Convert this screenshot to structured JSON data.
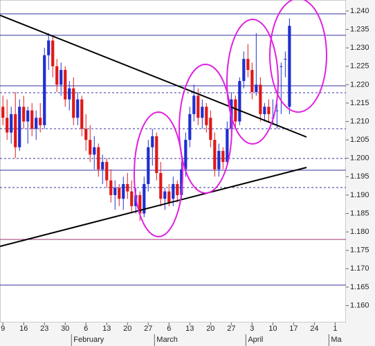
{
  "chart_data": {
    "type": "candlestick",
    "open": [
      1.214,
      1.211,
      1.207,
      1.212,
      1.203,
      1.214,
      1.21,
      1.213,
      1.208,
      1.211,
      1.209,
      1.228,
      1.232,
      1.225,
      1.22,
      1.224,
      1.216,
      1.219,
      1.211,
      1.216,
      1.208,
      1.205,
      1.201,
      1.203,
      1.197,
      1.199,
      1.194,
      1.19,
      1.192,
      1.189,
      1.193,
      1.191,
      1.187,
      1.19,
      1.185,
      1.193,
      1.203,
      1.206,
      1.196,
      1.189,
      1.191,
      1.189,
      1.193,
      1.19,
      1.197,
      1.205,
      1.212,
      1.217,
      1.211,
      1.214,
      1.211,
      1.205,
      1.197,
      1.202,
      1.199,
      1.208,
      1.216,
      1.21,
      1.221,
      1.227,
      1.224,
      1.218,
      1.22,
      1.212,
      1.214,
      1.211,
      1.213,
      1.225,
      1.227,
      1.214
    ],
    "high": [
      1.217,
      1.216,
      1.214,
      1.218,
      1.216,
      1.217,
      1.214,
      1.215,
      1.213,
      1.215,
      1.23,
      1.234,
      1.233,
      1.227,
      1.226,
      1.225,
      1.221,
      1.222,
      1.218,
      1.217,
      1.212,
      1.209,
      1.206,
      1.204,
      1.201,
      1.2,
      1.197,
      1.194,
      1.193,
      1.195,
      1.196,
      1.194,
      1.192,
      1.191,
      1.195,
      1.205,
      1.208,
      1.207,
      1.199,
      1.192,
      1.193,
      1.195,
      1.194,
      1.199,
      1.207,
      1.214,
      1.22,
      1.219,
      1.216,
      1.215,
      1.213,
      1.207,
      1.204,
      1.203,
      1.21,
      1.218,
      1.217,
      1.222,
      1.229,
      1.231,
      1.226,
      1.234,
      1.222,
      1.215,
      1.216,
      1.216,
      1.215,
      1.226,
      1.229,
      1.238
    ],
    "low": [
      1.209,
      1.205,
      1.204,
      1.2,
      1.202,
      1.208,
      1.204,
      1.206,
      1.205,
      1.207,
      1.208,
      1.224,
      1.222,
      1.218,
      1.217,
      1.214,
      1.213,
      1.209,
      1.209,
      1.206,
      1.202,
      1.199,
      1.197,
      1.195,
      1.193,
      1.192,
      1.188,
      1.186,
      1.187,
      1.186,
      1.189,
      1.185,
      1.185,
      1.183,
      1.184,
      1.191,
      1.198,
      1.194,
      1.187,
      1.186,
      1.187,
      1.187,
      1.188,
      1.189,
      1.195,
      1.203,
      1.21,
      1.209,
      1.208,
      1.207,
      1.203,
      1.195,
      1.195,
      1.197,
      1.198,
      1.206,
      1.208,
      1.209,
      1.219,
      1.222,
      1.216,
      1.217,
      1.21,
      1.21,
      1.21,
      1.209,
      1.208,
      1.212,
      1.222,
      1.212
    ],
    "close": [
      1.211,
      1.207,
      1.212,
      1.203,
      1.214,
      1.21,
      1.213,
      1.208,
      1.211,
      1.209,
      1.228,
      1.232,
      1.225,
      1.22,
      1.224,
      1.216,
      1.219,
      1.211,
      1.216,
      1.208,
      1.205,
      1.201,
      1.203,
      1.197,
      1.199,
      1.194,
      1.19,
      1.192,
      1.189,
      1.193,
      1.191,
      1.187,
      1.19,
      1.185,
      1.193,
      1.203,
      1.206,
      1.196,
      1.189,
      1.191,
      1.188,
      1.193,
      1.19,
      1.197,
      1.205,
      1.212,
      1.217,
      1.211,
      1.214,
      1.209,
      1.205,
      1.197,
      1.202,
      1.199,
      1.208,
      1.216,
      1.21,
      1.221,
      1.227,
      1.224,
      1.218,
      1.22,
      1.212,
      1.214,
      1.212,
      1.211,
      1.213,
      1.225,
      1.227,
      1.236
    ],
    "up_color": "#1f2fd0",
    "down_color": "#e01818",
    "ylim": [
      1.1554,
      1.243
    ],
    "yticks": [
      {
        "value": 1.24,
        "label": "1.240"
      },
      1.235,
      {
        "value": 1.23,
        "label": "1.230"
      },
      1.225,
      {
        "value": 1.22,
        "label": "1.220"
      },
      1.215,
      {
        "value": 1.21,
        "label": "1.210"
      },
      1.205,
      {
        "value": 1.2,
        "label": "1.200"
      },
      1.195,
      {
        "value": 1.19,
        "label": "1.190"
      },
      1.185,
      {
        "value": 1.18,
        "label": "1.180"
      },
      1.175,
      {
        "value": 1.17,
        "label": "1.170"
      },
      1.165,
      {
        "value": 1.16,
        "label": "1.160"
      }
    ],
    "xlim": [
      -0.7,
      82.6
    ],
    "xticks": [
      {
        "value": 0,
        "label": "9"
      },
      {
        "value": 5,
        "label": "16"
      },
      {
        "value": 10,
        "label": "23"
      },
      {
        "value": 15,
        "label": "30"
      },
      {
        "value": 20,
        "label": "6"
      },
      {
        "value": 25,
        "label": "13"
      },
      {
        "value": 30,
        "label": "20"
      },
      {
        "value": 35,
        "label": "27"
      },
      {
        "value": 40,
        "label": "6"
      },
      {
        "value": 45,
        "label": "13"
      },
      {
        "value": 50,
        "label": "20"
      },
      {
        "value": 55,
        "label": "27"
      },
      {
        "value": 60,
        "label": "3"
      },
      {
        "value": 65,
        "label": "10"
      },
      {
        "value": 70,
        "label": "17"
      },
      {
        "value": 75,
        "label": "24"
      },
      {
        "value": 80,
        "label": "1"
      }
    ],
    "months": [
      {
        "value": 16.5,
        "label": "February"
      },
      {
        "value": 36.5,
        "label": "March"
      },
      {
        "value": 58.5,
        "label": "April"
      },
      {
        "value": 78.5,
        "label": "Ma"
      }
    ]
  }
}
